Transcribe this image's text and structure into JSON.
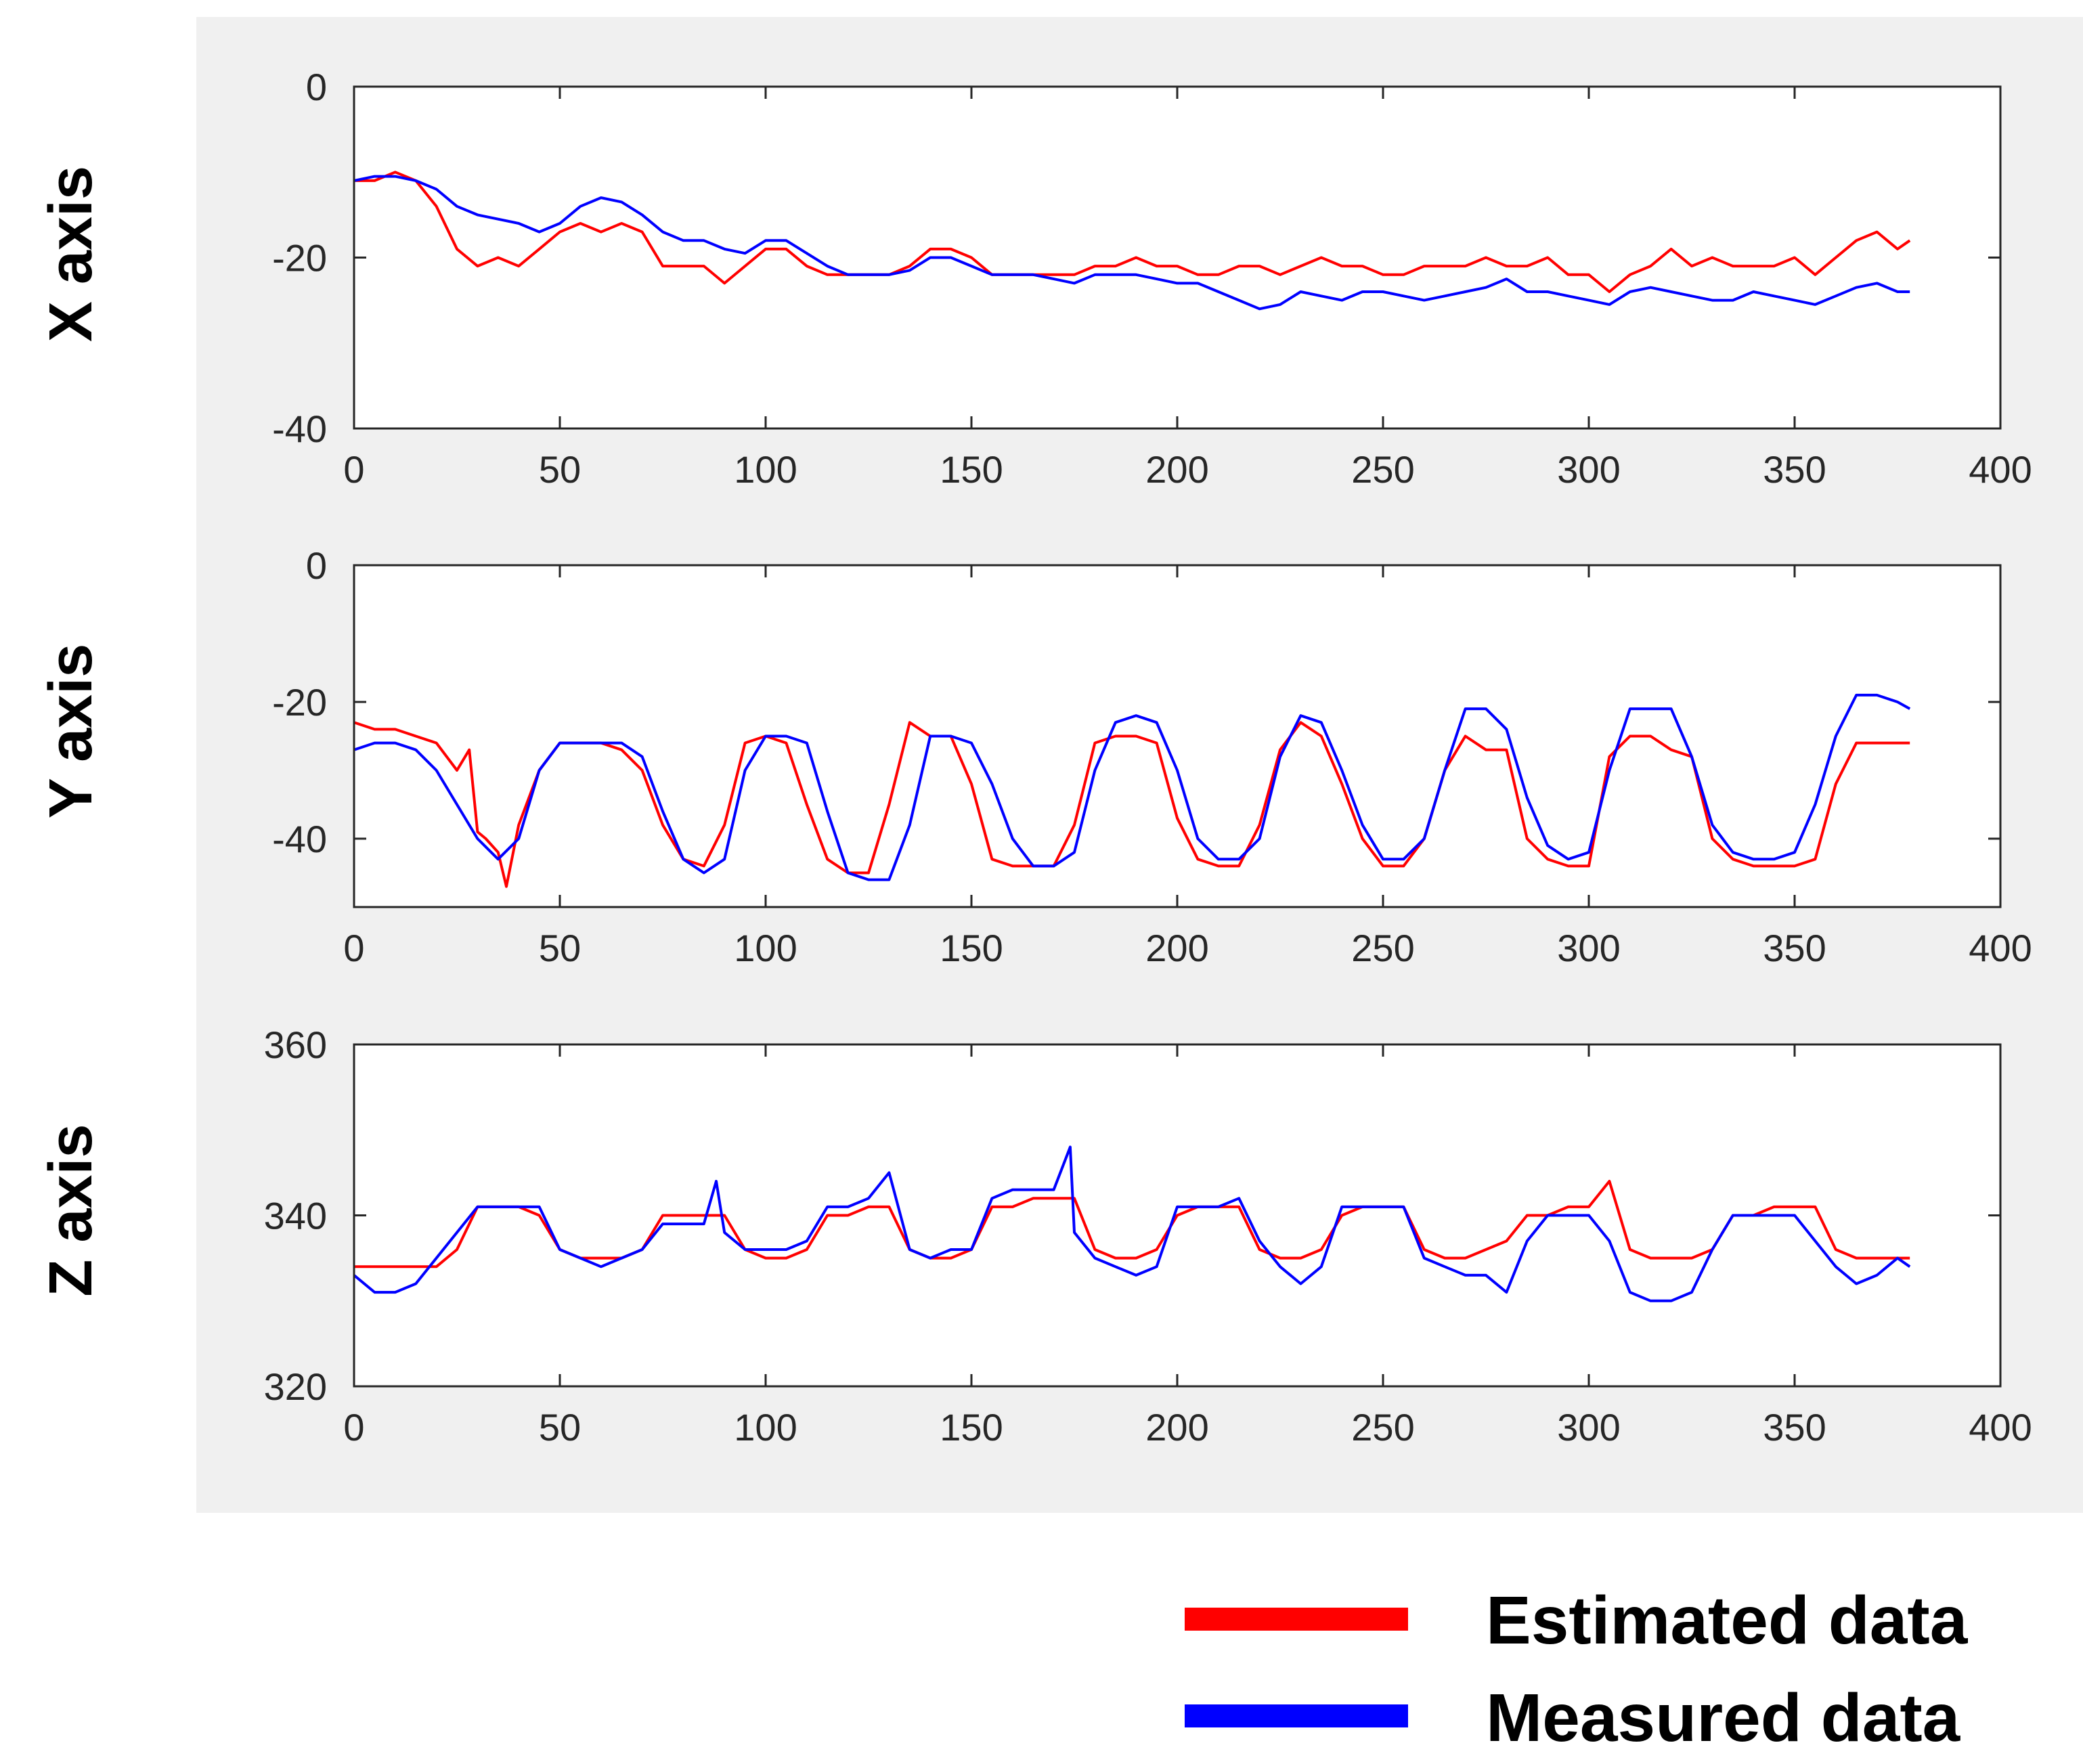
{
  "figure": {
    "legend": [
      {
        "label": "Estimated data",
        "color": "#ff0000"
      },
      {
        "label": "Measured data",
        "color": "#0000ff"
      }
    ]
  },
  "chart_data": [
    {
      "type": "line",
      "ylabel": "X axis",
      "xlim": [
        0,
        400
      ],
      "ylim": [
        -40,
        0
      ],
      "xticks": [
        0,
        50,
        100,
        150,
        200,
        250,
        300,
        350,
        400
      ],
      "yticks": [
        -40,
        -20,
        0
      ],
      "x_tick_labels": [
        "0",
        "50",
        "100",
        "150",
        "200",
        "250",
        "300",
        "350",
        "400"
      ],
      "y_tick_labels": [
        "-40",
        "-20",
        "0"
      ],
      "series": [
        {
          "name": "Estimated data",
          "color": "#ff0000",
          "x": [
            0,
            5,
            10,
            15,
            20,
            25,
            30,
            35,
            40,
            45,
            50,
            55,
            60,
            65,
            70,
            75,
            80,
            85,
            90,
            95,
            100,
            105,
            110,
            115,
            120,
            125,
            130,
            135,
            140,
            145,
            150,
            155,
            160,
            165,
            170,
            175,
            180,
            185,
            190,
            195,
            200,
            205,
            210,
            215,
            220,
            225,
            230,
            235,
            240,
            245,
            250,
            255,
            260,
            265,
            270,
            275,
            280,
            285,
            290,
            295,
            300,
            305,
            310,
            315,
            320,
            325,
            330,
            335,
            340,
            345,
            350,
            355,
            360,
            365,
            370,
            375,
            378
          ],
          "y": [
            -11,
            -11,
            -10,
            -11,
            -14,
            -19,
            -21,
            -20,
            -21,
            -19,
            -17,
            -16,
            -17,
            -16,
            -17,
            -21,
            -21,
            -21,
            -23,
            -21,
            -19,
            -19,
            -21,
            -22,
            -22,
            -22,
            -22,
            -21,
            -19,
            -19,
            -20,
            -22,
            -22,
            -22,
            -22,
            -22,
            -21,
            -21,
            -20,
            -21,
            -21,
            -22,
            -22,
            -21,
            -21,
            -22,
            -21,
            -20,
            -21,
            -21,
            -22,
            -22,
            -21,
            -21,
            -21,
            -20,
            -21,
            -21,
            -20,
            -22,
            -22,
            -24,
            -22,
            -21,
            -19,
            -21,
            -20,
            -21,
            -21,
            -21,
            -20,
            -22,
            -20,
            -18,
            -17,
            -19,
            -18
          ]
        },
        {
          "name": "Measured data",
          "color": "#0000ff",
          "x": [
            0,
            5,
            10,
            15,
            20,
            25,
            30,
            35,
            40,
            45,
            50,
            55,
            60,
            65,
            70,
            75,
            80,
            85,
            90,
            95,
            100,
            105,
            110,
            115,
            120,
            125,
            130,
            135,
            140,
            145,
            150,
            155,
            160,
            165,
            170,
            175,
            180,
            185,
            190,
            195,
            200,
            205,
            210,
            215,
            220,
            225,
            230,
            235,
            240,
            245,
            250,
            255,
            260,
            265,
            270,
            275,
            280,
            285,
            290,
            295,
            300,
            305,
            310,
            315,
            320,
            325,
            330,
            335,
            340,
            345,
            350,
            355,
            360,
            365,
            370,
            375,
            378
          ],
          "y": [
            -11,
            -10.5,
            -10.5,
            -11,
            -12,
            -14,
            -15,
            -15.5,
            -16,
            -17,
            -16,
            -14,
            -13,
            -13.5,
            -15,
            -17,
            -18,
            -18,
            -19,
            -19.5,
            -18,
            -18,
            -19.5,
            -21,
            -22,
            -22,
            -22,
            -21.5,
            -20,
            -20,
            -21,
            -22,
            -22,
            -22,
            -22.5,
            -23,
            -22,
            -22,
            -22,
            -22.5,
            -23,
            -23,
            -24,
            -25,
            -26,
            -25.5,
            -24,
            -24.5,
            -25,
            -24,
            -24,
            -24.5,
            -25,
            -24.5,
            -24,
            -23.5,
            -22.5,
            -24,
            -24,
            -24.5,
            -25,
            -25.5,
            -24,
            -23.5,
            -24,
            -24.5,
            -25,
            -25,
            -24,
            -24.5,
            -25,
            -25.5,
            -24.5,
            -23.5,
            -23,
            -24,
            -24
          ]
        }
      ]
    },
    {
      "type": "line",
      "ylabel": "Y axis",
      "xlim": [
        0,
        400
      ],
      "ylim": [
        -50,
        0
      ],
      "xticks": [
        0,
        50,
        100,
        150,
        200,
        250,
        300,
        350,
        400
      ],
      "yticks": [
        -40,
        -20,
        0
      ],
      "x_tick_labels": [
        "0",
        "50",
        "100",
        "150",
        "200",
        "250",
        "300",
        "350",
        "400"
      ],
      "y_tick_labels": [
        "-40",
        "-20",
        "0"
      ],
      "series": [
        {
          "name": "Estimated data",
          "color": "#ff0000",
          "x": [
            0,
            5,
            10,
            15,
            20,
            25,
            28,
            30,
            32,
            35,
            37,
            40,
            45,
            50,
            55,
            60,
            65,
            70,
            75,
            80,
            85,
            90,
            95,
            100,
            105,
            110,
            115,
            120,
            125,
            130,
            135,
            140,
            145,
            150,
            155,
            160,
            165,
            170,
            175,
            180,
            185,
            190,
            195,
            200,
            205,
            210,
            215,
            220,
            225,
            230,
            235,
            240,
            245,
            250,
            255,
            260,
            265,
            270,
            275,
            280,
            285,
            290,
            295,
            300,
            305,
            310,
            315,
            320,
            325,
            330,
            335,
            340,
            345,
            350,
            355,
            360,
            365,
            370,
            375,
            378
          ],
          "y": [
            -23,
            -24,
            -24,
            -25,
            -26,
            -30,
            -27,
            -39,
            -40,
            -42,
            -47,
            -38,
            -30,
            -26,
            -26,
            -26,
            -27,
            -30,
            -38,
            -43,
            -44,
            -38,
            -26,
            -25,
            -26,
            -35,
            -43,
            -45,
            -45,
            -35,
            -23,
            -25,
            -25,
            -32,
            -43,
            -44,
            -44,
            -44,
            -38,
            -26,
            -25,
            -25,
            -26,
            -37,
            -43,
            -44,
            -44,
            -38,
            -27,
            -23,
            -25,
            -32,
            -40,
            -44,
            -44,
            -40,
            -30,
            -25,
            -27,
            -27,
            -40,
            -43,
            -44,
            -44,
            -28,
            -25,
            -25,
            -27,
            -28,
            -40,
            -43,
            -44,
            -44,
            -44,
            -43,
            -32,
            -26,
            -26,
            -26,
            -26
          ]
        },
        {
          "name": "Measured data",
          "color": "#0000ff",
          "x": [
            0,
            5,
            10,
            15,
            20,
            25,
            30,
            35,
            40,
            45,
            50,
            55,
            60,
            65,
            70,
            75,
            80,
            85,
            90,
            95,
            100,
            105,
            110,
            115,
            120,
            125,
            130,
            135,
            140,
            145,
            150,
            155,
            160,
            165,
            170,
            175,
            180,
            185,
            190,
            195,
            200,
            205,
            210,
            215,
            220,
            225,
            230,
            235,
            240,
            245,
            250,
            255,
            260,
            265,
            270,
            275,
            280,
            285,
            290,
            295,
            300,
            305,
            310,
            315,
            320,
            325,
            330,
            335,
            340,
            345,
            350,
            355,
            360,
            365,
            370,
            375,
            378
          ],
          "y": [
            -27,
            -26,
            -26,
            -27,
            -30,
            -35,
            -40,
            -43,
            -40,
            -30,
            -26,
            -26,
            -26,
            -26,
            -28,
            -36,
            -43,
            -45,
            -43,
            -30,
            -25,
            -25,
            -26,
            -36,
            -45,
            -46,
            -46,
            -38,
            -25,
            -25,
            -26,
            -32,
            -40,
            -44,
            -44,
            -42,
            -30,
            -23,
            -22,
            -23,
            -30,
            -40,
            -43,
            -43,
            -40,
            -28,
            -22,
            -23,
            -30,
            -38,
            -43,
            -43,
            -40,
            -30,
            -21,
            -21,
            -24,
            -34,
            -41,
            -43,
            -42,
            -30,
            -21,
            -21,
            -21,
            -28,
            -38,
            -42,
            -43,
            -43,
            -42,
            -35,
            -25,
            -19,
            -19,
            -20,
            -21
          ]
        }
      ]
    },
    {
      "type": "line",
      "ylabel": "Z axis",
      "xlim": [
        0,
        400
      ],
      "ylim": [
        320,
        360
      ],
      "xticks": [
        0,
        50,
        100,
        150,
        200,
        250,
        300,
        350,
        400
      ],
      "yticks": [
        320,
        340,
        360
      ],
      "x_tick_labels": [
        "0",
        "50",
        "100",
        "150",
        "200",
        "250",
        "300",
        "350",
        "400"
      ],
      "y_tick_labels": [
        "320",
        "340",
        "360"
      ],
      "series": [
        {
          "name": "Estimated data",
          "color": "#ff0000",
          "x": [
            0,
            5,
            10,
            15,
            20,
            25,
            30,
            35,
            40,
            45,
            50,
            55,
            60,
            65,
            70,
            75,
            80,
            85,
            90,
            95,
            100,
            105,
            110,
            115,
            120,
            125,
            130,
            135,
            140,
            145,
            150,
            155,
            160,
            165,
            170,
            175,
            180,
            185,
            190,
            195,
            200,
            205,
            210,
            215,
            220,
            225,
            230,
            235,
            240,
            245,
            250,
            255,
            260,
            265,
            270,
            275,
            280,
            285,
            290,
            295,
            300,
            305,
            310,
            315,
            320,
            325,
            330,
            335,
            340,
            345,
            350,
            355,
            360,
            365,
            370,
            375,
            378
          ],
          "y": [
            334,
            334,
            334,
            334,
            334,
            336,
            341,
            341,
            341,
            340,
            336,
            335,
            335,
            335,
            336,
            340,
            340,
            340,
            340,
            336,
            335,
            335,
            336,
            340,
            340,
            341,
            341,
            336,
            335,
            335,
            336,
            341,
            341,
            342,
            342,
            342,
            336,
            335,
            335,
            336,
            340,
            341,
            341,
            341,
            336,
            335,
            335,
            336,
            340,
            341,
            341,
            341,
            336,
            335,
            335,
            336,
            337,
            340,
            340,
            341,
            341,
            344,
            336,
            335,
            335,
            335,
            336,
            340,
            340,
            341,
            341,
            341,
            336,
            335,
            335,
            335,
            335
          ]
        },
        {
          "name": "Measured data",
          "color": "#0000ff",
          "x": [
            0,
            5,
            10,
            15,
            20,
            25,
            30,
            35,
            40,
            45,
            50,
            55,
            60,
            65,
            70,
            75,
            80,
            85,
            88,
            90,
            95,
            100,
            105,
            110,
            115,
            120,
            125,
            130,
            135,
            140,
            145,
            150,
            155,
            160,
            165,
            170,
            174,
            175,
            180,
            185,
            190,
            195,
            200,
            205,
            210,
            215,
            220,
            225,
            230,
            235,
            240,
            245,
            250,
            255,
            260,
            265,
            270,
            275,
            280,
            285,
            290,
            295,
            300,
            305,
            310,
            315,
            320,
            325,
            330,
            335,
            340,
            345,
            350,
            355,
            360,
            365,
            370,
            375,
            378
          ],
          "y": [
            333,
            331,
            331,
            332,
            335,
            338,
            341,
            341,
            341,
            341,
            336,
            335,
            334,
            335,
            336,
            339,
            339,
            339,
            344,
            338,
            336,
            336,
            336,
            337,
            341,
            341,
            342,
            345,
            336,
            335,
            336,
            336,
            342,
            343,
            343,
            343,
            348,
            338,
            335,
            334,
            333,
            334,
            341,
            341,
            341,
            342,
            337,
            334,
            332,
            334,
            341,
            341,
            341,
            341,
            335,
            334,
            333,
            333,
            331,
            337,
            340,
            340,
            340,
            337,
            331,
            330,
            330,
            331,
            336,
            340,
            340,
            340,
            340,
            337,
            334,
            332,
            333,
            335,
            334
          ]
        }
      ]
    }
  ]
}
